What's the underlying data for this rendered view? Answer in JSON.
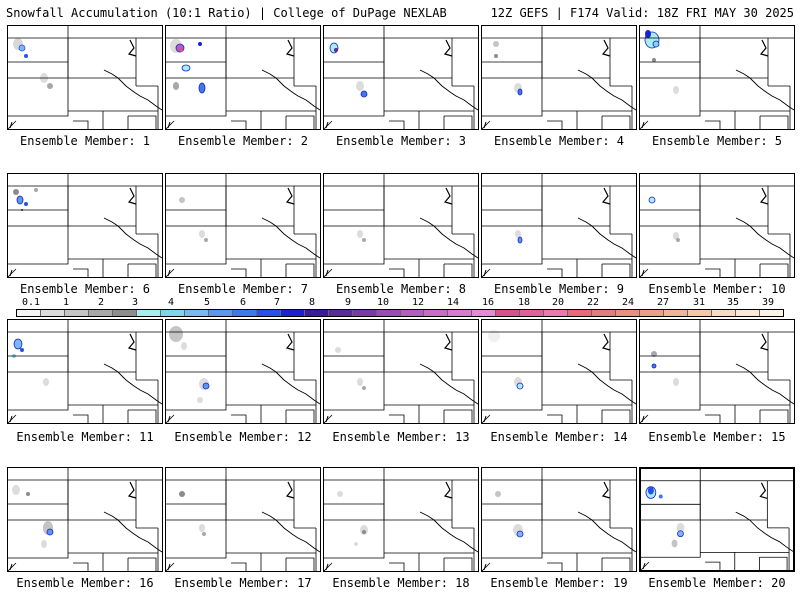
{
  "header": {
    "title": "Snowfall Accumulation (10:1 Ratio) | College of DuPage NEXLAB",
    "valid": "12Z GEFS | F174 Valid: 18Z FRI MAY 30 2025"
  },
  "legend": {
    "labels": [
      "0.1",
      "1",
      "2",
      "3",
      "4",
      "5",
      "6",
      "7",
      "8",
      "9",
      "10",
      "12",
      "14",
      "16",
      "18",
      "20",
      "22",
      "24",
      "27",
      "31",
      "35",
      "39"
    ],
    "colors": [
      "#f4f4f4",
      "#dcdcdc",
      "#c4c4c4",
      "#a8a8a8",
      "#8c8c8c",
      "#a6eef0",
      "#7fd4ee",
      "#79b8f0",
      "#5b97ec",
      "#3f78e8",
      "#2850e6",
      "#1a22cc",
      "#3b1a9e",
      "#5a2a98",
      "#7a3aa6",
      "#9a4cb2",
      "#b45cc0",
      "#c86cc8",
      "#d87ad0",
      "#e68ad8",
      "#d8508c",
      "#e0609c",
      "#ea7aae",
      "#ec6878",
      "#e27c7c",
      "#e8907c",
      "#eea086",
      "#f2b496",
      "#f6c8a8",
      "#f8dcc0",
      "#fbe8d6",
      "#fdf2e8"
    ]
  },
  "members": [
    {
      "label": "Ensemble Member: 1"
    },
    {
      "label": "Ensemble Member: 2"
    },
    {
      "label": "Ensemble Member: 3"
    },
    {
      "label": "Ensemble Member: 4"
    },
    {
      "label": "Ensemble Member: 5"
    },
    {
      "label": "Ensemble Member: 6"
    },
    {
      "label": "Ensemble Member: 7"
    },
    {
      "label": "Ensemble Member: 8"
    },
    {
      "label": "Ensemble Member: 9"
    },
    {
      "label": "Ensemble Member: 10"
    },
    {
      "label": "Ensemble Member: 11"
    },
    {
      "label": "Ensemble Member: 12"
    },
    {
      "label": "Ensemble Member: 13"
    },
    {
      "label": "Ensemble Member: 14"
    },
    {
      "label": "Ensemble Member: 15"
    },
    {
      "label": "Ensemble Member: 16"
    },
    {
      "label": "Ensemble Member: 17"
    },
    {
      "label": "Ensemble Member: 18"
    },
    {
      "label": "Ensemble Member: 19"
    },
    {
      "label": "Ensemble Member: 20"
    }
  ]
}
